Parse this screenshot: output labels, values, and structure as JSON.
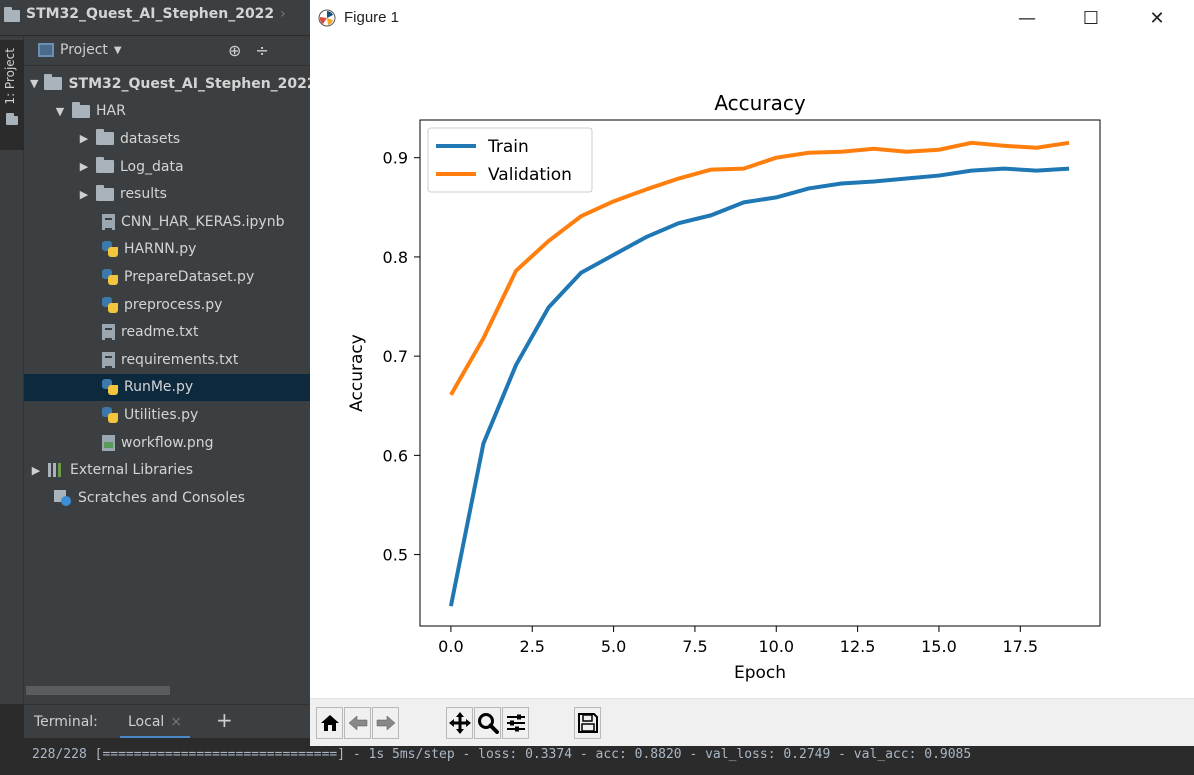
{
  "ide": {
    "breadcrumb": "STM32_Quest_AI_Stephen_2022",
    "tool_strip_label": "1: Project",
    "panel_title": "Project"
  },
  "tree": [
    {
      "label": "STM32_Quest_AI_Stephen_2022",
      "type": "folder",
      "depth": 0,
      "expanded": true
    },
    {
      "label": "HAR",
      "type": "folder",
      "depth": 1,
      "expanded": true
    },
    {
      "label": "datasets",
      "type": "folder",
      "depth": 2,
      "expanded": false
    },
    {
      "label": "Log_data",
      "type": "folder",
      "depth": 2,
      "expanded": false
    },
    {
      "label": "results",
      "type": "folder",
      "depth": 2,
      "expanded": false
    },
    {
      "label": "CNN_HAR_KERAS.ipynb",
      "type": "file",
      "depth": 3
    },
    {
      "label": "HARNN.py",
      "type": "python",
      "depth": 3
    },
    {
      "label": "PrepareDataset.py",
      "type": "python",
      "depth": 3
    },
    {
      "label": "preprocess.py",
      "type": "python",
      "depth": 3
    },
    {
      "label": "readme.txt",
      "type": "file",
      "depth": 3
    },
    {
      "label": "requirements.txt",
      "type": "file",
      "depth": 3
    },
    {
      "label": "RunMe.py",
      "type": "python",
      "depth": 3,
      "selected": true
    },
    {
      "label": "Utilities.py",
      "type": "python",
      "depth": 3
    },
    {
      "label": "workflow.png",
      "type": "image",
      "depth": 3
    },
    {
      "label": "External Libraries",
      "type": "library",
      "depth": 0,
      "expanded": false
    },
    {
      "label": "Scratches and Consoles",
      "type": "scratch",
      "depth": 0
    }
  ],
  "terminal": {
    "label": "Terminal:",
    "tab": "Local",
    "output": "228/228 [==============================] - 1s 5ms/step - loss: 0.3374 - acc: 0.8820 - val_loss: 0.2749 - val_acc: 0.9085"
  },
  "figure": {
    "window_title": "Figure 1"
  },
  "chart_data": {
    "type": "line",
    "title": "Accuracy",
    "xlabel": "Epoch",
    "ylabel": "Accuracy",
    "x": [
      0,
      1,
      2,
      3,
      4,
      5,
      6,
      7,
      8,
      9,
      10,
      11,
      12,
      13,
      14,
      15,
      16,
      17,
      18,
      19
    ],
    "xlim": [
      -0.95,
      19.95
    ],
    "ylim": [
      0.428,
      0.938
    ],
    "xticks": [
      0.0,
      2.5,
      5.0,
      7.5,
      10.0,
      12.5,
      15.0,
      17.5
    ],
    "yticks": [
      0.5,
      0.6,
      0.7,
      0.8,
      0.9
    ],
    "xtick_labels": [
      "0.0",
      "2.5",
      "5.0",
      "7.5",
      "10.0",
      "12.5",
      "15.0",
      "17.5"
    ],
    "ytick_labels": [
      "0.5",
      "0.6",
      "0.7",
      "0.8",
      "0.9"
    ],
    "legend": "upper-left",
    "grid": false,
    "series": [
      {
        "name": "Train",
        "color": "#1f77b4",
        "values": [
          0.448,
          0.612,
          0.691,
          0.749,
          0.784,
          0.802,
          0.82,
          0.834,
          0.842,
          0.855,
          0.86,
          0.869,
          0.874,
          0.876,
          0.879,
          0.882,
          0.887,
          0.889,
          0.887,
          0.889
        ]
      },
      {
        "name": "Validation",
        "color": "#ff7f0e",
        "values": [
          0.661,
          0.718,
          0.786,
          0.816,
          0.841,
          0.856,
          0.868,
          0.879,
          0.888,
          0.889,
          0.9,
          0.905,
          0.906,
          0.909,
          0.906,
          0.908,
          0.915,
          0.912,
          0.91,
          0.915
        ]
      }
    ]
  }
}
